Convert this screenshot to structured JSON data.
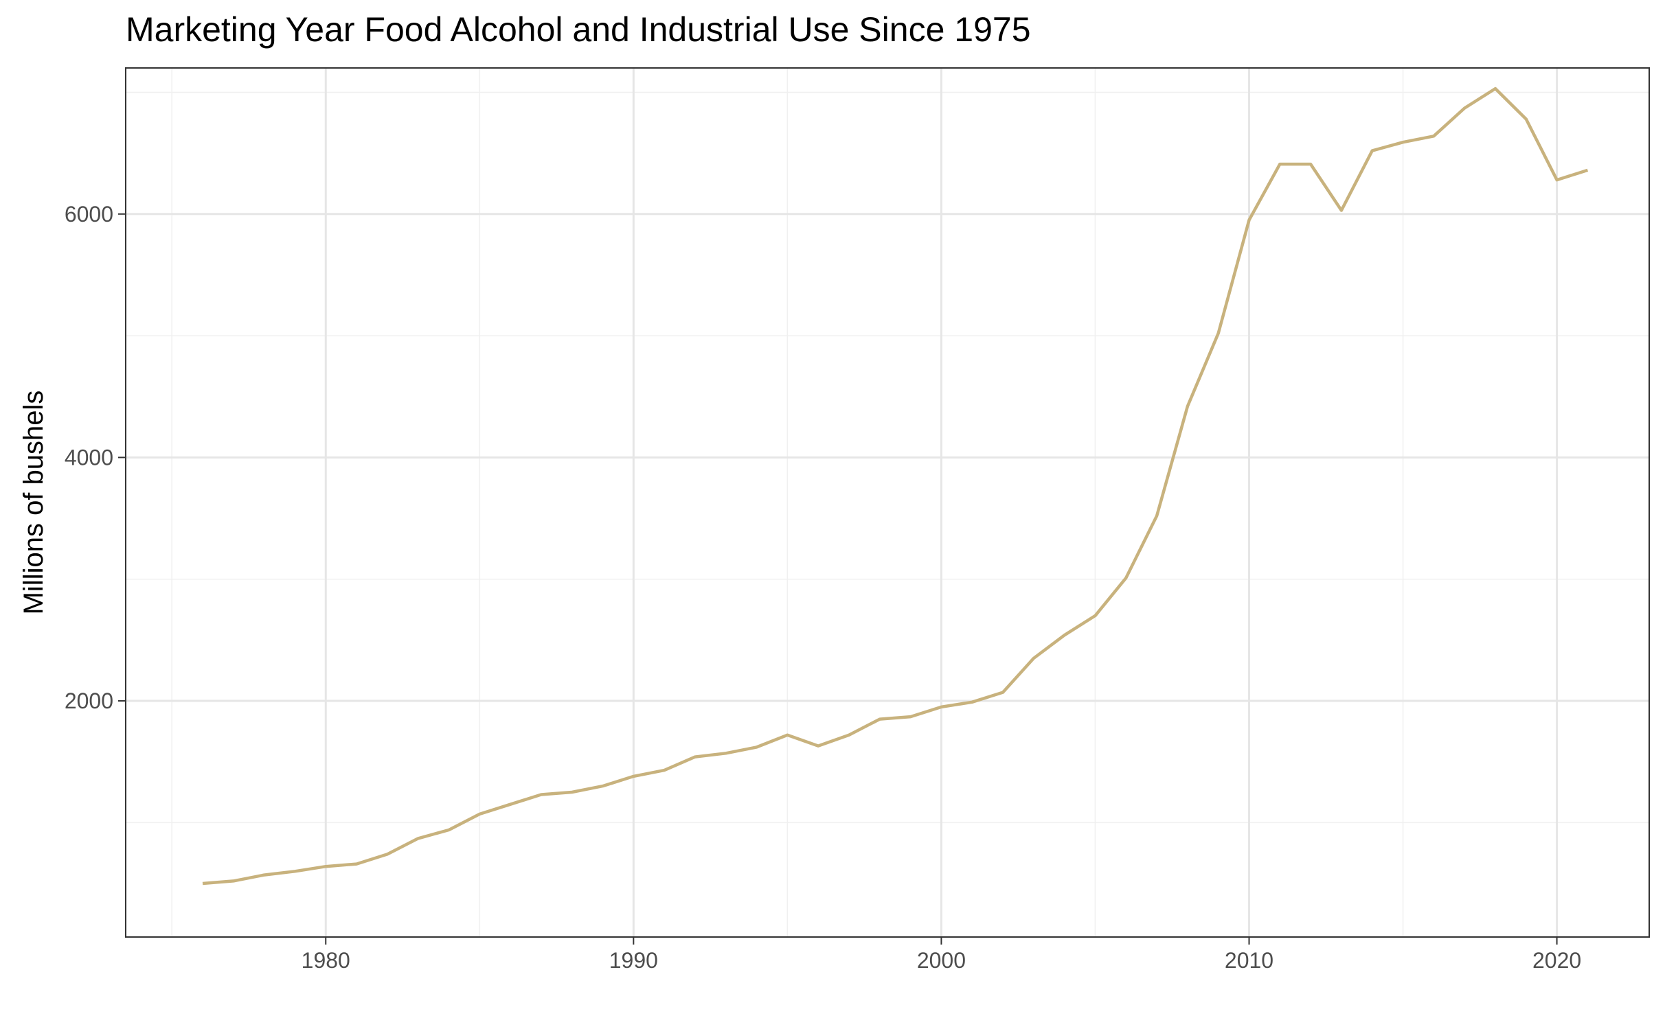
{
  "chart_data": {
    "type": "line",
    "title": "Marketing Year Food Alcohol and Industrial Use Since 1975",
    "xlabel": "",
    "ylabel": "Millions of bushels",
    "xlim": [
      1973.5,
      2023
    ],
    "ylim": [
      60,
      7200
    ],
    "x_ticks": [
      1980,
      1990,
      2000,
      2010,
      2020
    ],
    "y_ticks": [
      2000,
      4000,
      6000
    ],
    "grid": true,
    "legend": "none",
    "line_color": "#C8B27D",
    "series": [
      {
        "x": [
          1976,
          1977,
          1978,
          1979,
          1980,
          1981,
          1982,
          1983,
          1984,
          1985,
          1986,
          1987,
          1988,
          1989,
          1990,
          1991,
          1992,
          1993,
          1994,
          1995,
          1996,
          1997,
          1998,
          1999,
          2000,
          2001,
          2002,
          2003,
          2004,
          2005,
          2006,
          2007,
          2008,
          2009,
          2010,
          2011,
          2012,
          2013,
          2014,
          2015,
          2016,
          2017,
          2018,
          2019,
          2020,
          2021
        ],
        "values": [
          500,
          520,
          570,
          600,
          640,
          660,
          740,
          870,
          940,
          1070,
          1150,
          1230,
          1250,
          1300,
          1380,
          1430,
          1540,
          1570,
          1620,
          1720,
          1630,
          1720,
          1850,
          1870,
          1950,
          1990,
          2070,
          2350,
          2540,
          2700,
          3010,
          3520,
          4420,
          5020,
          5950,
          6410,
          6410,
          6030,
          6520,
          6590,
          6640,
          6870,
          7030,
          6780,
          6280,
          6360
        ]
      }
    ]
  }
}
